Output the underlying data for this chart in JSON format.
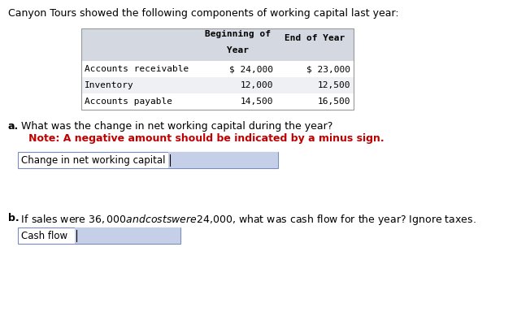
{
  "title": "Canyon Tours showed the following components of working capital last year:",
  "table_header1": "Beginning of",
  "table_header1b": "Year",
  "table_header2": "End of Year",
  "table_rows": [
    [
      "Accounts receivable",
      "$ 24,000",
      "$ 23,000"
    ],
    [
      "Inventory",
      "12,000",
      "12,500"
    ],
    [
      "Accounts payable",
      "14,500",
      "16,500"
    ]
  ],
  "header_bg": "#d4d8e0",
  "row_bg_alt": "#eef0f4",
  "row_bg_white": "#ffffff",
  "part_a_bold": "a.",
  "part_a_text": " What was the change in net working capital during the year?",
  "part_a_note": "   Note: A negative amount should be indicated by a minus sign.",
  "part_a_note_color": "#c00000",
  "part_a_input_label": "Change in net working capital",
  "part_b_bold": "b.",
  "part_b_text": " If sales were $36,000 and costs were $24,000, what was cash flow for the year? Ignore taxes.",
  "part_b_input_label": "Cash flow",
  "input_answer_color": "#c5cfe8",
  "input_border_color": "#7a8bbf",
  "bg_color": "#ffffff",
  "text_color": "#000000",
  "mono_font": "DejaVu Sans Mono",
  "sans_font": "DejaVu Sans",
  "title_fontsize": 9.0,
  "table_fontsize": 8.0,
  "body_fontsize": 9.0,
  "input_fontsize": 8.5
}
